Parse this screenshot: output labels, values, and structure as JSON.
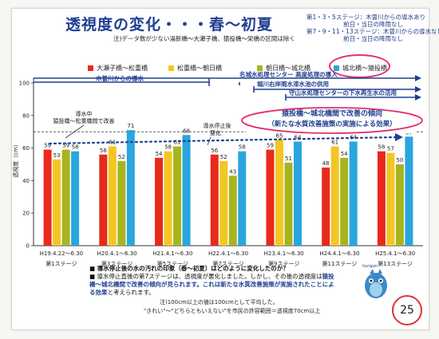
{
  "title": "透視度の変化・・・春～初夏",
  "subtitle": "注)データ数が少ない湯新橋～大瀬子橋、猿投橋～栄橋の区間は除く",
  "notes": [
    "第1・3・5ステージ：木曽川からの導水あり",
    "前日・当日の降雨なし",
    "第7・9・11・13ステージ：木曽川からの導水なし",
    "前日・当日の降雨なし"
  ],
  "legend": [
    {
      "label": "大瀬子橋～松重橋",
      "color": "#e8291c"
    },
    {
      "label": "松重橋～朝日橋",
      "color": "#f3c623"
    },
    {
      "label": "朝日橋～城北橋",
      "color": "#a7b41f"
    },
    {
      "label": "城北橋～猿投橋",
      "color": "#29a6dd"
    }
  ],
  "timeline": {
    "kisogawa": "木曽川からの導水",
    "meijo": "名城水処理センター 高度処理の導入",
    "horikawa": "堀川右岸雨水滞水池の供用",
    "moriyama": "守山水処理センターの下水再生水の活用"
  },
  "annotations": {
    "during_diversion": "導水中",
    "during_diversion_detail": "猿投橋～松重橋間で改善",
    "after_stop": "導水停止後",
    "worsened": "悪化",
    "trend_line1": "猿投橋～城北橋間で改善の傾向",
    "trend_line2": "（新たな水質改善施策の実施による効果）"
  },
  "chart_data": {
    "type": "bar",
    "title": "",
    "ylabel": "透視度（cm）",
    "ylim": [
      0,
      100
    ],
    "yticks": [
      0,
      20,
      40,
      60,
      80,
      100
    ],
    "reference_line": 70,
    "categories": [
      "H19.4.22～6.30",
      "H20.4.1～6.30",
      "H21.4.1～6.30",
      "H22.4.1～6.30",
      "H23.4.1～6.30",
      "H24.4.1～6.30",
      "H25.4.1～6.30"
    ],
    "stages": [
      "第1ステージ",
      "第3ステージ",
      "第5ステージ",
      "第7ステージ",
      "第9ステージ",
      "第11ステージ",
      "第13ステージ"
    ],
    "series": [
      {
        "name": "大瀬子橋～松重橋",
        "color": "#e8291c",
        "values": [
          59,
          56,
          54,
          56,
          59,
          48,
          58
        ]
      },
      {
        "name": "松重橋～朝日橋",
        "color": "#f3c623",
        "values": [
          53,
          61,
          58,
          52,
          65,
          61,
          57
        ]
      },
      {
        "name": "朝日橋～城北橋",
        "color": "#a7b41f",
        "values": [
          59,
          52,
          61,
          43,
          51,
          54,
          50
        ]
      },
      {
        "name": "城北橋～猿投橋",
        "color": "#29a6dd",
        "values": [
          58,
          71,
          68,
          58,
          64,
          64,
          67
        ]
      }
    ]
  },
  "caption": {
    "question": "■ 導水停止後の水の汚れの印象（春～初夏）はどのように変化したのか？",
    "answer_a": "■ 導水停止直後の第7ステージは、透視度が悪化しました。しかし、その後の透視度は",
    "answer_hl": "猿投橋～城北橋間で改善の傾向が見られます。これは新たな水質改善施策が実施されたことによる効果",
    "answer_b": "と考えられます。"
  },
  "footer": {
    "note1": "注)100cm以上の値は100cmとして平均した。",
    "note2": "\"きれい\"～\"どちらともいえない\"を市民の許容範囲＝透視度70cm以上"
  },
  "page_number": "25",
  "mascot_label": "horigon"
}
